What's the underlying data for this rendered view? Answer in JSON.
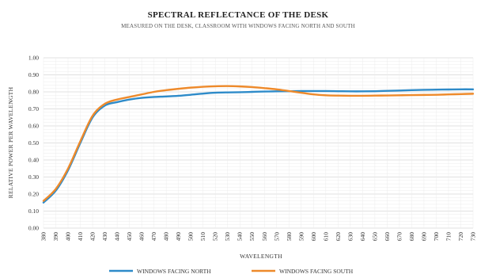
{
  "chart_data": {
    "type": "line",
    "title": "Spectral reflectance of the desk",
    "subtitle": "Measured on the desk, Classroom with windows facing north and south",
    "xlabel": "Wavelength",
    "ylabel": "Relative power per wavelength",
    "ylim": [
      0,
      1
    ],
    "yticks": [
      "0.00",
      "0.10",
      "0.20",
      "0.30",
      "0.40",
      "0.50",
      "0.60",
      "0.70",
      "0.80",
      "0.90",
      "1.00"
    ],
    "x": [
      380,
      390,
      400,
      410,
      420,
      430,
      440,
      450,
      460,
      470,
      480,
      490,
      500,
      510,
      520,
      530,
      540,
      550,
      560,
      570,
      580,
      590,
      600,
      610,
      620,
      630,
      640,
      650,
      660,
      670,
      680,
      690,
      700,
      710,
      720,
      730
    ],
    "grid": true,
    "legend_position": "bottom",
    "series": [
      {
        "name": "Windows facing North",
        "color": "#2e8bc9",
        "values": [
          0.15,
          0.22,
          0.34,
          0.5,
          0.65,
          0.72,
          0.74,
          0.755,
          0.765,
          0.77,
          0.773,
          0.777,
          0.783,
          0.79,
          0.795,
          0.797,
          0.798,
          0.8,
          0.802,
          0.803,
          0.804,
          0.805,
          0.805,
          0.805,
          0.804,
          0.803,
          0.803,
          0.804,
          0.806,
          0.808,
          0.81,
          0.812,
          0.813,
          0.814,
          0.815,
          0.815
        ]
      },
      {
        "name": "Windows facing South",
        "color": "#ee8a2b",
        "values": [
          0.16,
          0.23,
          0.35,
          0.51,
          0.66,
          0.73,
          0.755,
          0.77,
          0.785,
          0.8,
          0.81,
          0.818,
          0.825,
          0.83,
          0.833,
          0.834,
          0.832,
          0.828,
          0.822,
          0.815,
          0.805,
          0.795,
          0.785,
          0.78,
          0.778,
          0.777,
          0.777,
          0.778,
          0.779,
          0.78,
          0.781,
          0.782,
          0.783,
          0.785,
          0.787,
          0.789
        ]
      }
    ]
  },
  "colors": {
    "grid": "#e3e3e3",
    "axis": "#bdbdbd",
    "text": "#333333"
  }
}
